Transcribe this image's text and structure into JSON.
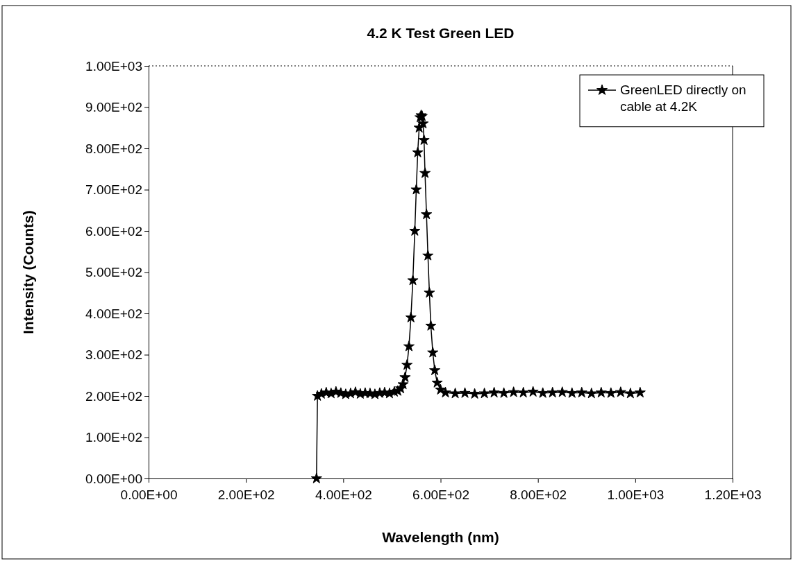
{
  "chart_data": {
    "type": "line",
    "title": "4.2 K Test Green LED",
    "xlabel": "Wavelength (nm)",
    "ylabel": "Intensity (Counts)",
    "xlim": [
      0,
      1200
    ],
    "ylim": [
      0,
      1000
    ],
    "xticks": [
      {
        "value": 0,
        "label": "0.00E+00"
      },
      {
        "value": 200,
        "label": "2.00E+02"
      },
      {
        "value": 400,
        "label": "4.00E+02"
      },
      {
        "value": 600,
        "label": "6.00E+02"
      },
      {
        "value": 800,
        "label": "8.00E+02"
      },
      {
        "value": 1000,
        "label": "1.00E+03"
      },
      {
        "value": 1200,
        "label": "1.20E+03"
      }
    ],
    "yticks": [
      {
        "value": 0,
        "label": "0.00E+00"
      },
      {
        "value": 100,
        "label": "1.00E+02"
      },
      {
        "value": 200,
        "label": "2.00E+02"
      },
      {
        "value": 300,
        "label": "3.00E+02"
      },
      {
        "value": 400,
        "label": "4.00E+02"
      },
      {
        "value": 500,
        "label": "5.00E+02"
      },
      {
        "value": 600,
        "label": "6.00E+02"
      },
      {
        "value": 700,
        "label": "7.00E+02"
      },
      {
        "value": 800,
        "label": "8.00E+02"
      },
      {
        "value": 900,
        "label": "9.00E+02"
      },
      {
        "value": 1000,
        "label": "1.00E+03"
      }
    ],
    "grid": false,
    "legend": "top right",
    "marker": "star",
    "line_style": "solid",
    "series": [
      {
        "name": "GreenLED directly on cable at 4.2K",
        "color": "#000000",
        "x": [
          345,
          347,
          355,
          365,
          375,
          385,
          395,
          405,
          415,
          425,
          435,
          445,
          455,
          465,
          475,
          485,
          495,
          505,
          512,
          518,
          523,
          527,
          531,
          535,
          539,
          543,
          547,
          550,
          553,
          556,
          558,
          560,
          562,
          564,
          566,
          568,
          571,
          574,
          577,
          580,
          584,
          588,
          593,
          600,
          610,
          630,
          650,
          670,
          690,
          710,
          730,
          750,
          770,
          790,
          810,
          830,
          850,
          870,
          890,
          910,
          930,
          950,
          970,
          990,
          1010
        ],
        "values": [
          0,
          200,
          205,
          208,
          206,
          210,
          207,
          204,
          206,
          209,
          205,
          207,
          206,
          204,
          207,
          208,
          206,
          210,
          212,
          218,
          228,
          245,
          275,
          320,
          390,
          480,
          600,
          700,
          790,
          850,
          875,
          880,
          878,
          860,
          820,
          740,
          640,
          540,
          450,
          370,
          305,
          262,
          232,
          215,
          208,
          206,
          207,
          205,
          206,
          208,
          207,
          209,
          208,
          210,
          207,
          208,
          209,
          207,
          208,
          206,
          208,
          207,
          209,
          206,
          208
        ]
      }
    ]
  }
}
